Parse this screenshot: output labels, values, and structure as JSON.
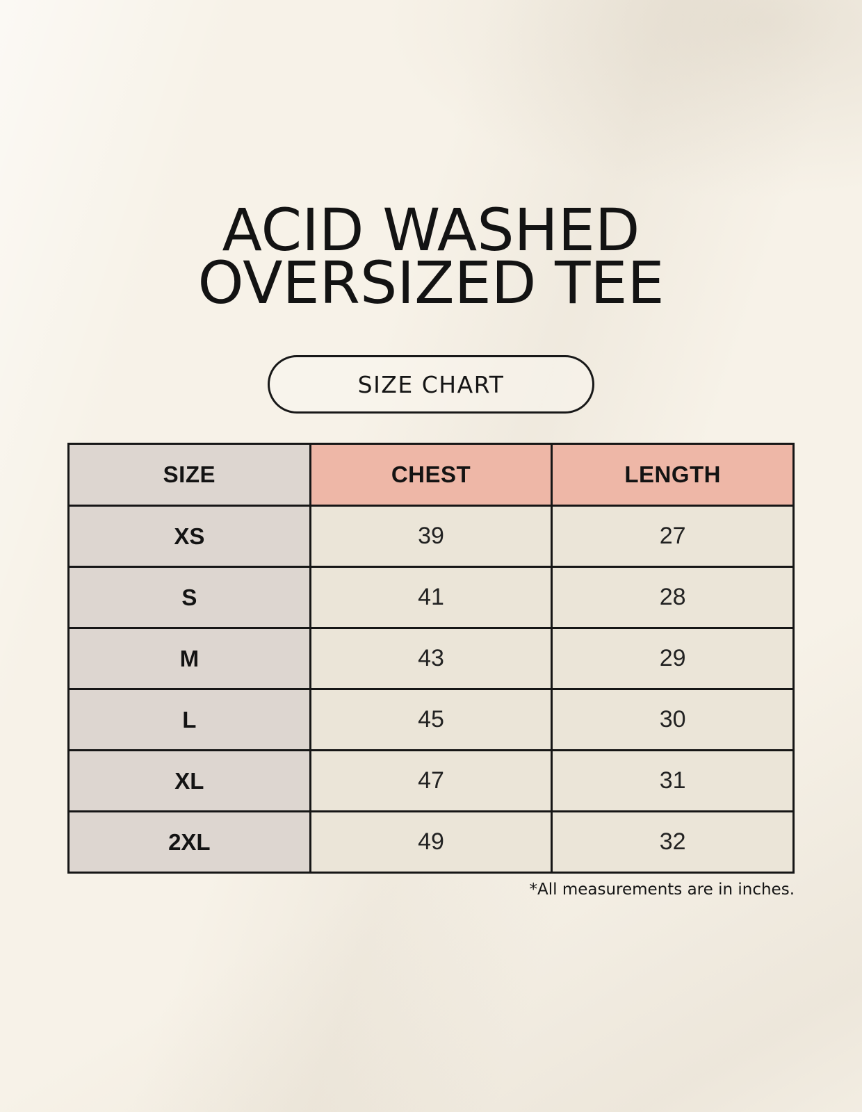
{
  "title": {
    "line1": "ACID WASHED",
    "line2": "OVERSIZED TEE"
  },
  "size_chart_button": {
    "label": "SIZE CHART"
  },
  "table": {
    "columns": [
      "SIZE",
      "CHEST",
      "LENGTH"
    ],
    "rows": [
      {
        "size": "XS",
        "chest": "39",
        "length": "27"
      },
      {
        "size": "S",
        "chest": "41",
        "length": "28"
      },
      {
        "size": "M",
        "chest": "43",
        "length": "29"
      },
      {
        "size": "L",
        "chest": "45",
        "length": "30"
      },
      {
        "size": "XL",
        "chest": "47",
        "length": "31"
      },
      {
        "size": "2XL",
        "chest": "49",
        "length": "32"
      }
    ]
  },
  "footnote": "*All measurements are in inches.",
  "colors": {
    "background": "#f7f2e8",
    "header_size_bg": "#ddd6d0",
    "header_measure_bg": "#eeb7a7",
    "size_column_bg": "#ddd6d0",
    "data_cell_bg": "#ebe5d8",
    "border": "#161616",
    "text": "#1d1d1d"
  },
  "chart_data": {
    "type": "table",
    "title": "SIZE CHART",
    "subtitle": "ACID WASHED OVERSIZED TEE",
    "columns": [
      "SIZE",
      "CHEST",
      "LENGTH"
    ],
    "rows": [
      [
        "XS",
        39,
        27
      ],
      [
        "S",
        41,
        28
      ],
      [
        "M",
        43,
        29
      ],
      [
        "L",
        45,
        30
      ],
      [
        "XL",
        47,
        31
      ],
      [
        "2XL",
        49,
        32
      ]
    ],
    "units": "inches",
    "note": "*All measurements are in inches."
  }
}
